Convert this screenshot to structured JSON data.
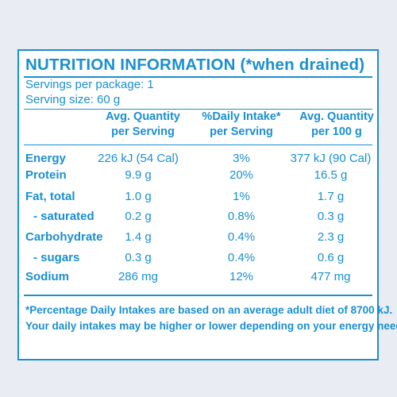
{
  "label": {
    "title": "NUTRITION INFORMATION (*when drained)",
    "servings_per_package": "Servings per package: 1",
    "serving_size": "Serving size: 60 g",
    "columns": [
      "Avg. Quantity\nper Serving",
      "%Daily Intake*\nper Serving",
      "Avg. Quantity\nper 100 g"
    ],
    "rows": [
      {
        "name": "Energy",
        "per_serving": "226 kJ (54 Cal)",
        "daily_intake": "3%",
        "per_100g": "377 kJ (90 Cal)"
      },
      {
        "name": "Protein",
        "per_serving": "9.9 g",
        "daily_intake": "20%",
        "per_100g": "16.5 g"
      },
      {
        "name": "Fat, total",
        "per_serving": "1.0 g",
        "daily_intake": "1%",
        "per_100g": "1.7 g"
      },
      {
        "name": "- saturated",
        "per_serving": "0.2 g",
        "daily_intake": "0.8%",
        "per_100g": "0.3 g"
      },
      {
        "name": "Carbohydrate",
        "per_serving": "1.4 g",
        "daily_intake": "0.4%",
        "per_100g": "2.3 g"
      },
      {
        "name": "- sugars",
        "per_serving": "0.3 g",
        "daily_intake": "0.4%",
        "per_100g": "0.6 g"
      },
      {
        "name": "Sodium",
        "per_serving": "286 mg",
        "daily_intake": "12%",
        "per_100g": "477 mg"
      }
    ],
    "footnote_line1": "*Percentage Daily Intakes are based on an average adult diet of 8700 kJ.",
    "footnote_line2": "Your daily intakes may be higher or lower depending on your energy needs."
  },
  "colors": {
    "ink": "#1a8fd0",
    "panel": "#ffffff",
    "background": "#e9edf3"
  }
}
